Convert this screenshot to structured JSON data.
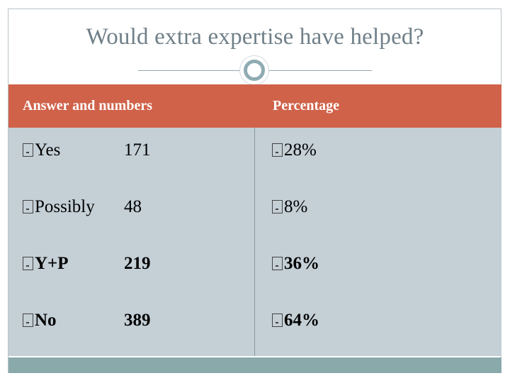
{
  "slide": {
    "title": "Would extra expertise have helped?"
  },
  "table": {
    "headers": [
      "Answer and numbers",
      "Percentage"
    ],
    "rows": [
      {
        "answer": "Yes",
        "number": "171",
        "percentage": "28%"
      },
      {
        "answer": "Possibly",
        "number": "48",
        "percentage": "8%"
      },
      {
        "answer": "Y+P",
        "number": "219",
        "percentage": "36%"
      },
      {
        "answer": "No",
        "number": "389",
        "percentage": "64%"
      }
    ]
  },
  "colors": {
    "header": "#d0624a",
    "body": "#c4cfd6",
    "footer": "#8aa9ab",
    "title": "#6f7f88"
  },
  "icons": {
    "bullet": "square-bullet-icon",
    "ornament": "circle-ornament-icon"
  }
}
